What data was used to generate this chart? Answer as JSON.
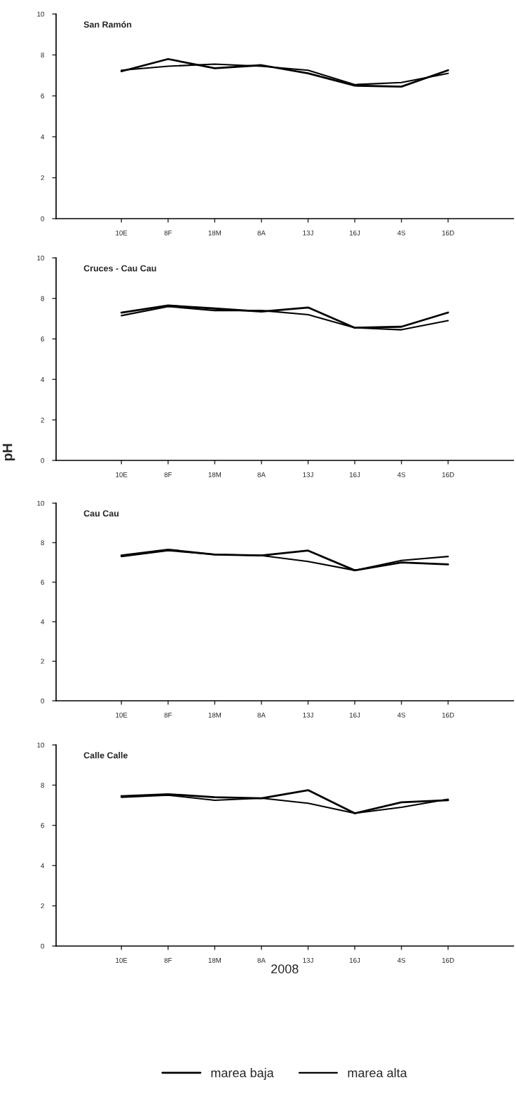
{
  "chart_data": [
    {
      "type": "line",
      "title": "San Ramón",
      "categories": [
        "10E",
        "8F",
        "18M",
        "8A",
        "13J",
        "16J",
        "4S",
        "16D"
      ],
      "ylim": [
        0,
        10
      ],
      "yticks": [
        0,
        2,
        4,
        6,
        8,
        10
      ],
      "grid": false,
      "marker": "none",
      "line_style": "solid",
      "series": [
        {
          "color": "#000000",
          "values": [
            7.2,
            7.8,
            7.35,
            7.5,
            7.1,
            6.5,
            6.45,
            7.25
          ]
        },
        {
          "color": "#000000",
          "values": [
            7.25,
            7.45,
            7.55,
            7.45,
            7.25,
            6.55,
            6.65,
            7.1
          ]
        }
      ]
    },
    {
      "type": "line",
      "title": "Cruces - Cau Cau",
      "ylabel": "pH",
      "categories": [
        "10E",
        "8F",
        "18M",
        "8A",
        "13J",
        "16J",
        "4S",
        "16D"
      ],
      "ylim": [
        0,
        10
      ],
      "yticks": [
        0,
        2,
        4,
        6,
        8,
        10
      ],
      "grid": false,
      "marker": "none",
      "line_style": "solid",
      "series": [
        {
          "color": "#000000",
          "values": [
            7.3,
            7.65,
            7.5,
            7.35,
            7.55,
            6.55,
            6.6,
            7.3
          ]
        },
        {
          "color": "#000000",
          "values": [
            7.15,
            7.6,
            7.4,
            7.4,
            7.2,
            6.55,
            6.45,
            6.9
          ]
        }
      ]
    },
    {
      "type": "line",
      "title": "Cau Cau",
      "categories": [
        "10E",
        "8F",
        "18M",
        "8A",
        "13J",
        "16J",
        "4S",
        "16D"
      ],
      "ylim": [
        0,
        10
      ],
      "yticks": [
        0,
        2,
        4,
        6,
        8,
        10
      ],
      "grid": false,
      "marker": "none",
      "line_style": "solid",
      "series": [
        {
          "color": "#000000",
          "values": [
            7.35,
            7.65,
            7.4,
            7.35,
            7.6,
            6.6,
            7.0,
            6.9
          ]
        },
        {
          "color": "#000000",
          "values": [
            7.3,
            7.6,
            7.4,
            7.35,
            7.05,
            6.6,
            7.1,
            7.3
          ]
        }
      ]
    },
    {
      "type": "line",
      "title": "Calle Calle",
      "xlabel": "2008",
      "categories": [
        "10E",
        "8F",
        "18M",
        "8A",
        "13J",
        "16J",
        "4S",
        "16D"
      ],
      "ylim": [
        0,
        10
      ],
      "yticks": [
        0,
        2,
        4,
        6,
        8,
        10
      ],
      "grid": false,
      "marker": "none",
      "line_style": "solid",
      "legend": "bottom",
      "series": [
        {
          "name": "marea baja",
          "color": "#000000",
          "values": [
            7.45,
            7.55,
            7.4,
            7.35,
            7.75,
            6.6,
            7.15,
            7.25
          ]
        },
        {
          "name": "marea alta",
          "color": "#000000",
          "values": [
            7.4,
            7.5,
            7.25,
            7.35,
            7.1,
            6.6,
            6.9,
            7.3
          ]
        }
      ]
    }
  ]
}
